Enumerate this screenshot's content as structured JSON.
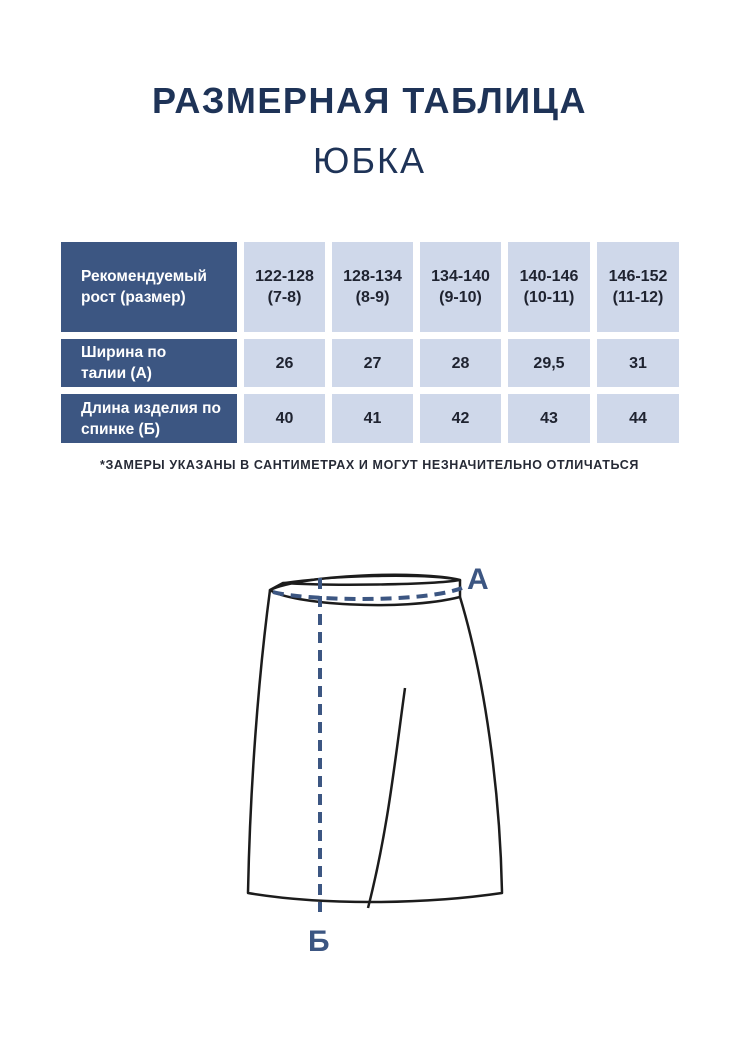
{
  "header": {
    "title": "РАЗМЕРНАЯ ТАБЛИЦА",
    "subtitle": "ЮБКА"
  },
  "table": {
    "row_height_label": "Рекомендуемый рост (размер)",
    "row_waist_label": "Ширина по талии (А)",
    "row_length_label": "Длина изделия по спинке (Б)",
    "sizes": [
      "122-128 (7-8)",
      "128-134 (8-9)",
      "134-140 (9-10)",
      "140-146 (10-11)",
      "146-152 (11-12)"
    ],
    "waist": [
      "26",
      "27",
      "28",
      "29,5",
      "31"
    ],
    "length": [
      "40",
      "41",
      "42",
      "43",
      "44"
    ]
  },
  "footnote": "*ЗАМЕРЫ УКАЗАНЫ В САНТИМЕТРАХ И МОГУТ НЕЗНАЧИТЕЛЬНО ОТЛИЧАТЬСЯ",
  "diagram": {
    "label_a": "А",
    "label_b": "Б"
  },
  "colors": {
    "navy": "#1e3357",
    "header_cell": "#3c5682",
    "value_cell": "#cfd8ea",
    "measure_line": "#3c5682"
  }
}
